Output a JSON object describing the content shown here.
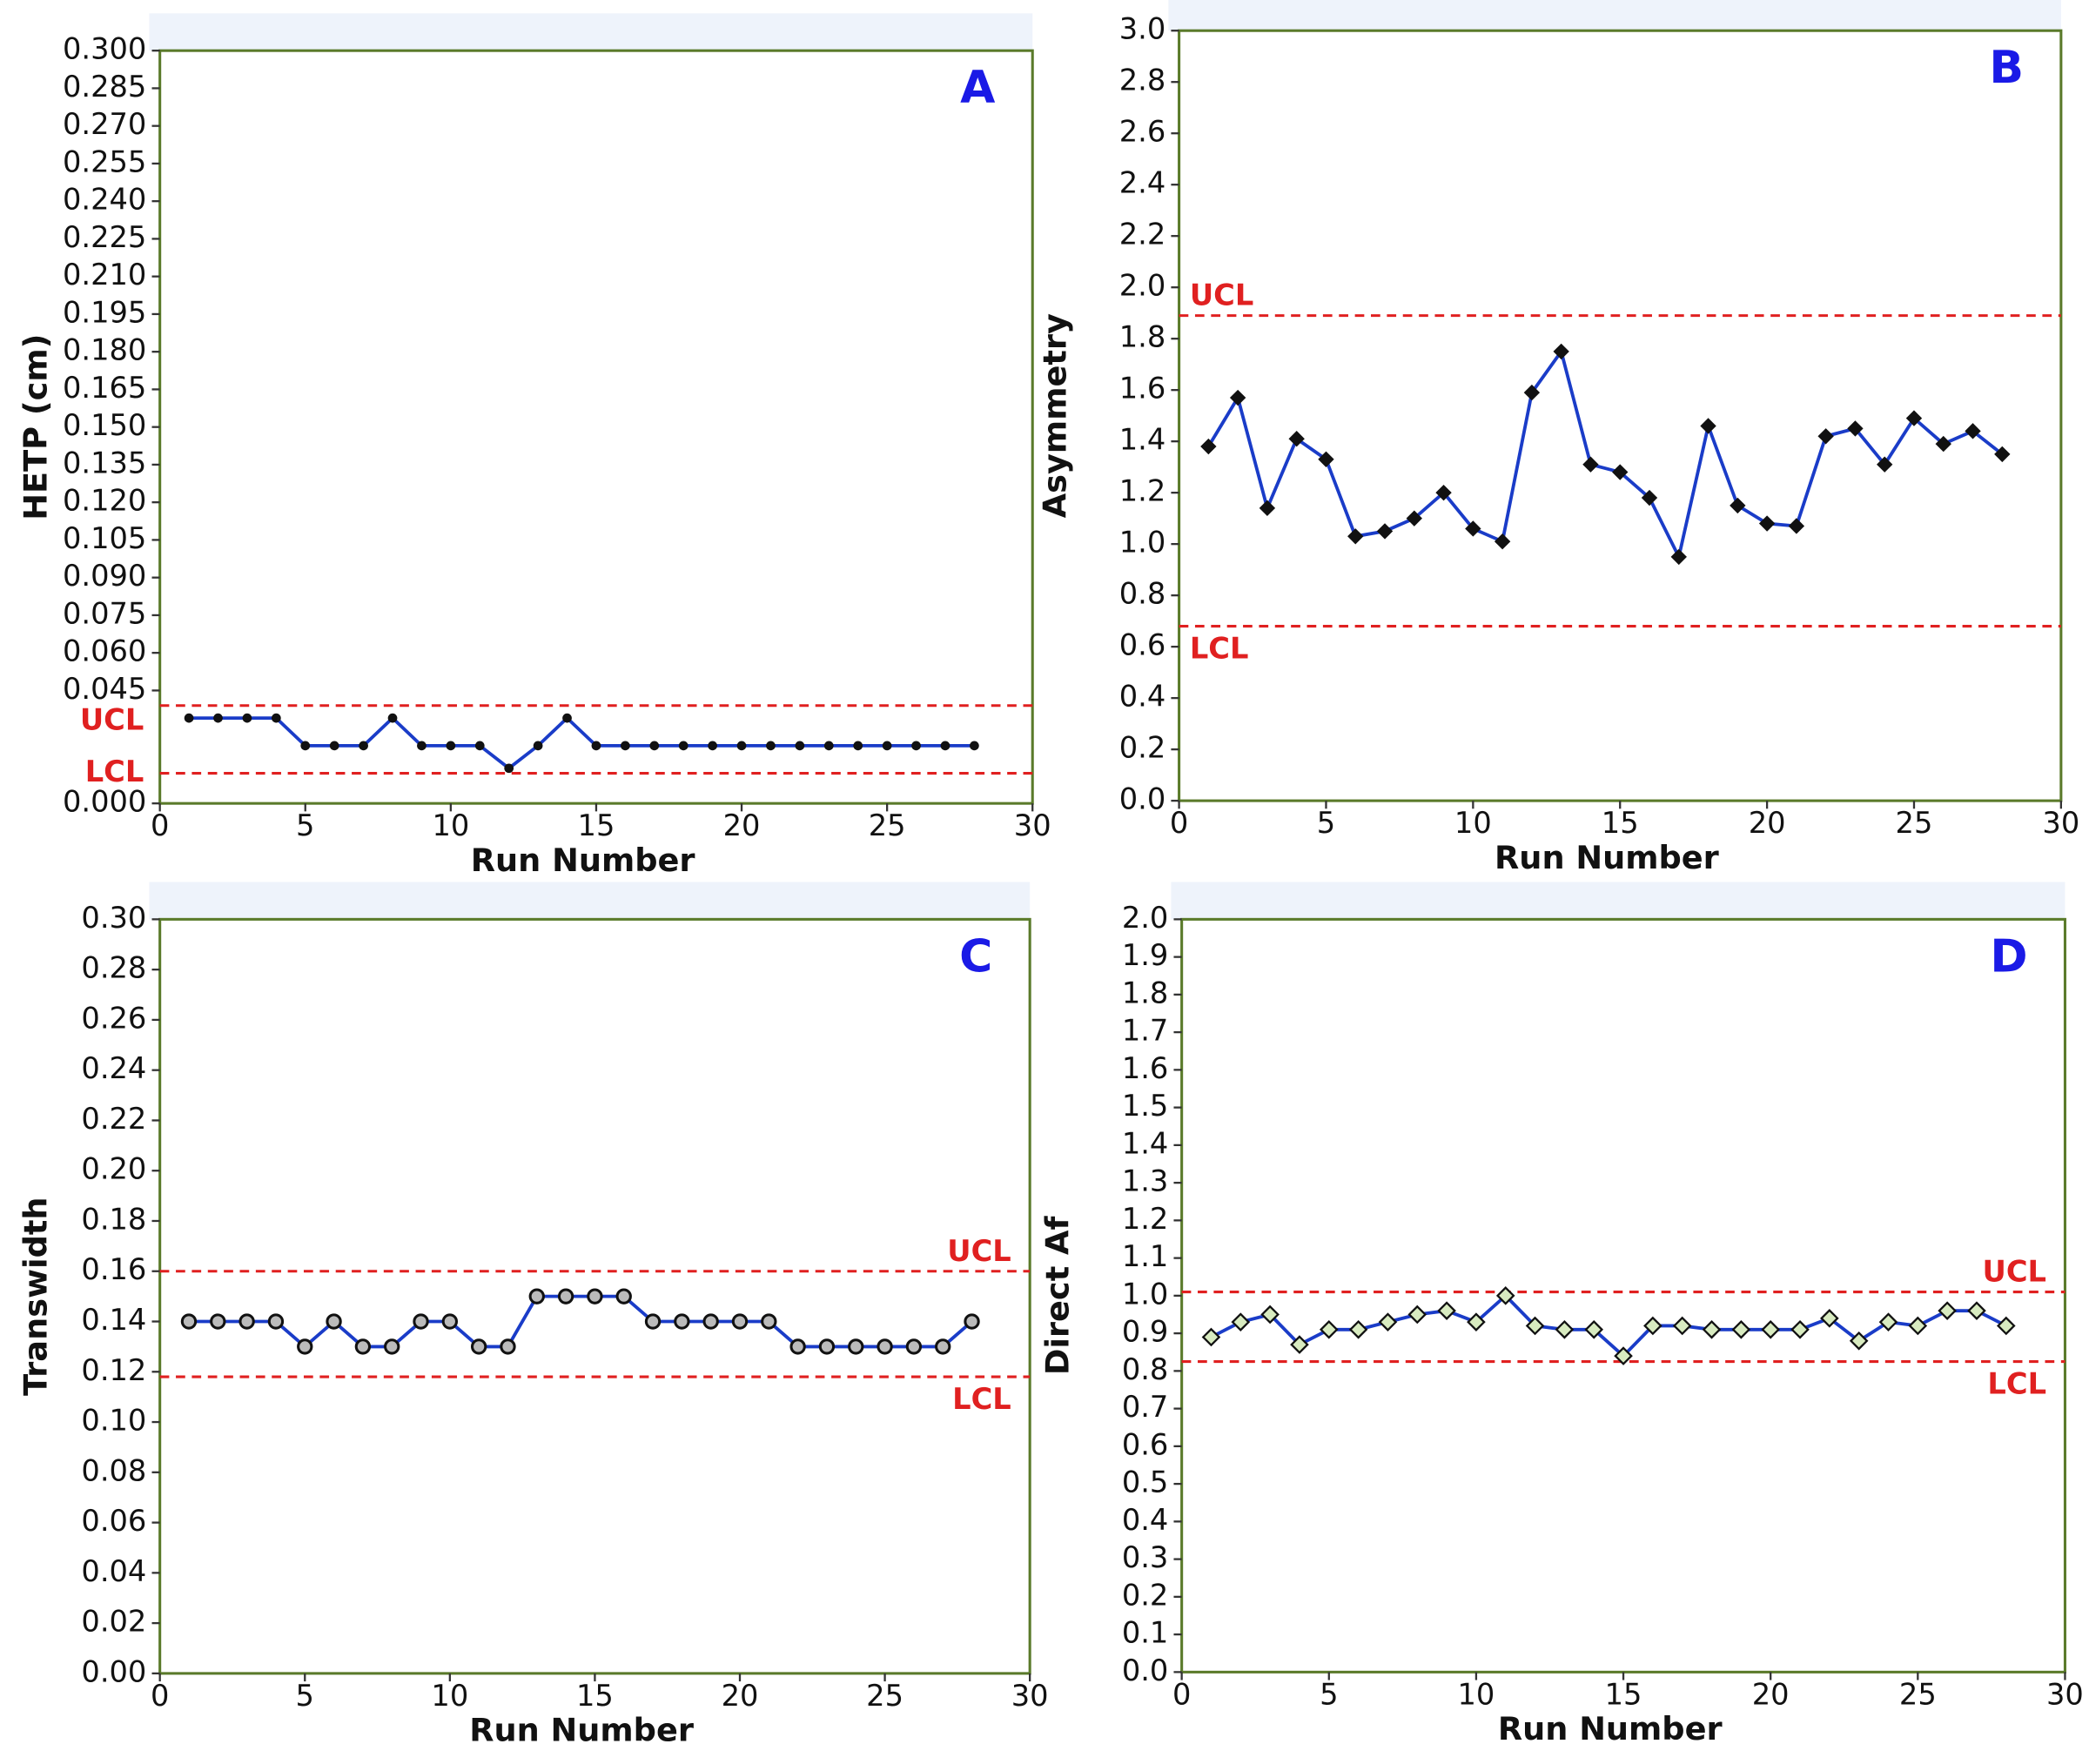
{
  "chart_data": [
    {
      "type": "line",
      "panel_label": "A",
      "x_label": "Run Number",
      "y_label": "HETP (cm)",
      "x": [
        1,
        2,
        3,
        4,
        5,
        6,
        7,
        8,
        9,
        10,
        11,
        12,
        13,
        14,
        15,
        16,
        17,
        18,
        19,
        20,
        21,
        22,
        23,
        24,
        25,
        26,
        27,
        28
      ],
      "values": [
        0.034,
        0.034,
        0.034,
        0.034,
        0.023,
        0.023,
        0.023,
        0.034,
        0.023,
        0.023,
        0.023,
        0.014,
        0.023,
        0.034,
        0.023,
        0.023,
        0.023,
        0.023,
        0.023,
        0.023,
        0.023,
        0.023,
        0.023,
        0.023,
        0.023,
        0.023,
        0.023,
        0.023
      ],
      "color": "#1a3cc8",
      "marker": "dot",
      "xlim": [
        0,
        30
      ],
      "xticks": [
        0,
        5,
        10,
        15,
        20,
        25,
        30
      ],
      "ylim": [
        0,
        0.3
      ],
      "yticks": [
        {
          "value": 0,
          "label": "0.000"
        },
        0.045,
        {
          "value": 0.06,
          "label": "0.060"
        },
        0.075,
        {
          "value": 0.09,
          "label": "0.090"
        },
        0.105,
        {
          "value": 0.12,
          "label": "0.120"
        },
        0.135,
        {
          "value": 0.15,
          "label": "0.150"
        },
        0.165,
        {
          "value": 0.18,
          "label": "0.180"
        },
        0.195,
        {
          "value": 0.21,
          "label": "0.210"
        },
        0.225,
        {
          "value": 0.24,
          "label": "0.240"
        },
        0.255,
        {
          "value": 0.27,
          "label": "0.270"
        },
        0.285,
        {
          "value": 0.3,
          "label": "0.300"
        }
      ],
      "control_limits": [
        {
          "label": "UCL",
          "value": 0.039,
          "color": "#e02020"
        },
        {
          "label": "LCL",
          "value": 0.012,
          "color": "#e02020"
        }
      ]
    },
    {
      "type": "line",
      "panel_label": "B",
      "x_label": "Run Number",
      "y_label": "Asymmetry",
      "x": [
        1,
        2,
        3,
        4,
        5,
        6,
        7,
        8,
        9,
        10,
        11,
        12,
        13,
        14,
        15,
        16,
        17,
        18,
        19,
        20,
        21,
        22,
        23,
        24,
        25,
        26,
        27,
        28
      ],
      "values": [
        1.38,
        1.57,
        1.14,
        1.41,
        1.33,
        1.03,
        1.05,
        1.1,
        1.2,
        1.06,
        1.01,
        1.59,
        1.75,
        1.31,
        1.28,
        1.18,
        0.95,
        1.46,
        1.15,
        1.08,
        1.07,
        1.42,
        1.45,
        1.31,
        1.49,
        1.39,
        1.44,
        1.35
      ],
      "color": "#1a3cc8",
      "marker": "diamond",
      "xlim": [
        0,
        30
      ],
      "xticks": [
        0,
        5,
        10,
        15,
        20,
        25,
        30
      ],
      "ylim": [
        0,
        3
      ],
      "yticks": [
        {
          "value": 0,
          "label": "0.0"
        },
        0.2,
        0.4,
        0.6,
        0.8,
        {
          "value": 1,
          "label": "1.0"
        },
        1.2,
        1.4,
        1.6,
        1.8,
        {
          "value": 2,
          "label": "2.0"
        },
        2.2,
        2.4,
        2.6,
        2.8,
        {
          "value": 3,
          "label": "3.0"
        }
      ],
      "control_limits": [
        {
          "label": "UCL",
          "value": 1.89,
          "color": "#e02020"
        },
        {
          "label": "LCL",
          "value": 0.68,
          "color": "#e02020"
        }
      ]
    },
    {
      "type": "line",
      "panel_label": "C",
      "x_label": "Run Number",
      "y_label": "Transwidth",
      "x": [
        1,
        2,
        3,
        4,
        5,
        6,
        7,
        8,
        9,
        10,
        11,
        12,
        13,
        14,
        15,
        16,
        17,
        18,
        19,
        20,
        21,
        22,
        23,
        24,
        25,
        26,
        27,
        28
      ],
      "values": [
        0.14,
        0.14,
        0.14,
        0.14,
        0.13,
        0.14,
        0.13,
        0.13,
        0.14,
        0.14,
        0.13,
        0.13,
        0.15,
        0.15,
        0.15,
        0.15,
        0.14,
        0.14,
        0.14,
        0.14,
        0.14,
        0.13,
        0.13,
        0.13,
        0.13,
        0.13,
        0.13,
        0.14
      ],
      "color": "#1a3cc8",
      "marker": "circle",
      "xlim": [
        0,
        30
      ],
      "xticks": [
        0,
        5,
        10,
        15,
        20,
        25,
        30
      ],
      "ylim": [
        0,
        0.3
      ],
      "yticks": [
        {
          "value": 0,
          "label": "0.00"
        },
        0.02,
        0.04,
        0.06,
        0.08,
        {
          "value": 0.1,
          "label": "0.10"
        },
        0.12,
        0.14,
        0.16,
        0.18,
        {
          "value": 0.2,
          "label": "0.20"
        },
        0.22,
        0.24,
        0.26,
        0.28,
        {
          "value": 0.3,
          "label": "0.30"
        }
      ],
      "control_limits": [
        {
          "label": "UCL",
          "value": 0.16,
          "color": "#e02020"
        },
        {
          "label": "LCL",
          "value": 0.118,
          "color": "#e02020"
        }
      ]
    },
    {
      "type": "line",
      "panel_label": "D",
      "x_label": "Run Number",
      "y_label": "Direct Af",
      "x": [
        1,
        2,
        3,
        4,
        5,
        6,
        7,
        8,
        9,
        10,
        11,
        12,
        13,
        14,
        15,
        16,
        17,
        18,
        19,
        20,
        21,
        22,
        23,
        24,
        25,
        26,
        27,
        28
      ],
      "values": [
        0.89,
        0.93,
        0.95,
        0.87,
        0.91,
        0.91,
        0.93,
        0.95,
        0.96,
        0.93,
        1.0,
        0.92,
        0.91,
        0.91,
        0.84,
        0.92,
        0.92,
        0.91,
        0.91,
        0.91,
        0.91,
        0.94,
        0.88,
        0.93,
        0.92,
        0.96,
        0.96,
        0.92
      ],
      "color": "#1a3cc8",
      "marker": "open-diamond",
      "xlim": [
        0,
        30
      ],
      "xticks": [
        0,
        5,
        10,
        15,
        20,
        25,
        30
      ],
      "ylim": [
        0,
        2
      ],
      "yticks": [
        {
          "value": 0,
          "label": "0.0"
        },
        0.1,
        0.2,
        0.3,
        0.4,
        0.5,
        0.6,
        0.7,
        0.8,
        0.9,
        {
          "value": 1,
          "label": "1.0"
        },
        1.1,
        1.2,
        1.3,
        1.4,
        1.5,
        1.6,
        1.7,
        1.8,
        1.9,
        {
          "value": 2,
          "label": "2.0"
        }
      ],
      "control_limits": [
        {
          "label": "UCL",
          "value": 1.01,
          "color": "#e02020"
        },
        {
          "label": "LCL",
          "value": 0.825,
          "color": "#e02020"
        }
      ]
    }
  ]
}
